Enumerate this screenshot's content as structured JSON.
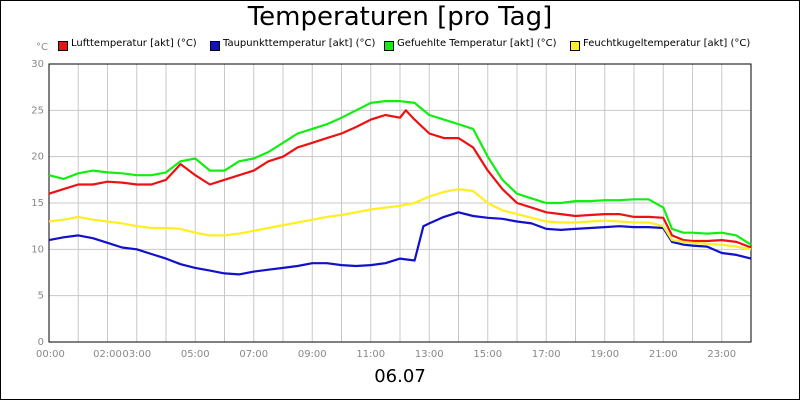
{
  "title": "Temperaturen [pro Tag]",
  "footer_date": "06.07",
  "y_unit": "°C",
  "chart_data": {
    "type": "line",
    "title": "Temperaturen [pro Tag]",
    "xlabel": "06.07",
    "ylabel": "°C",
    "ylim": [
      0,
      30
    ],
    "xlim": [
      0,
      24
    ],
    "y_ticks": [
      "0",
      "5",
      "10",
      "15",
      "20",
      "25",
      "30"
    ],
    "x_ticks": [
      {
        "h": 0,
        "label": "00:00"
      },
      {
        "h": 2,
        "label": "02:00"
      },
      {
        "h": 3,
        "label": "03:00"
      },
      {
        "h": 5,
        "label": "05:00"
      },
      {
        "h": 7,
        "label": "07:00"
      },
      {
        "h": 9,
        "label": "09:00"
      },
      {
        "h": 11,
        "label": "11:00"
      },
      {
        "h": 13,
        "label": "13:00"
      },
      {
        "h": 15,
        "label": "15:00"
      },
      {
        "h": 17,
        "label": "17:00"
      },
      {
        "h": 19,
        "label": "19:00"
      },
      {
        "h": 21,
        "label": "21:00"
      },
      {
        "h": 23,
        "label": "23:00"
      }
    ],
    "grid": true,
    "legend_position": "top",
    "series": [
      {
        "name": "Lufttemperatur [akt] (°C)",
        "color": "#ee1111",
        "points": [
          [
            0,
            16
          ],
          [
            0.5,
            16.5
          ],
          [
            1,
            17
          ],
          [
            1.5,
            17
          ],
          [
            2,
            17.3
          ],
          [
            2.5,
            17.2
          ],
          [
            3,
            17
          ],
          [
            3.5,
            17
          ],
          [
            4,
            17.5
          ],
          [
            4.5,
            19.2
          ],
          [
            5,
            18
          ],
          [
            5.5,
            17
          ],
          [
            6,
            17.5
          ],
          [
            6.5,
            18
          ],
          [
            7,
            18.5
          ],
          [
            7.5,
            19.5
          ],
          [
            8,
            20
          ],
          [
            8.5,
            21
          ],
          [
            9,
            21.5
          ],
          [
            9.5,
            22
          ],
          [
            10,
            22.5
          ],
          [
            10.5,
            23.2
          ],
          [
            11,
            24
          ],
          [
            11.5,
            24.5
          ],
          [
            12,
            24.2
          ],
          [
            12.2,
            25
          ],
          [
            12.5,
            24
          ],
          [
            13,
            22.5
          ],
          [
            13.5,
            22
          ],
          [
            14,
            22
          ],
          [
            14.5,
            21
          ],
          [
            15,
            18.5
          ],
          [
            15.5,
            16.5
          ],
          [
            16,
            15
          ],
          [
            16.5,
            14.5
          ],
          [
            17,
            14
          ],
          [
            17.5,
            13.8
          ],
          [
            18,
            13.6
          ],
          [
            18.5,
            13.7
          ],
          [
            19,
            13.8
          ],
          [
            19.5,
            13.8
          ],
          [
            20,
            13.5
          ],
          [
            20.5,
            13.5
          ],
          [
            21,
            13.4
          ],
          [
            21.3,
            11.5
          ],
          [
            21.7,
            11
          ],
          [
            22,
            10.9
          ],
          [
            22.5,
            10.9
          ],
          [
            23,
            11
          ],
          [
            23.5,
            10.8
          ],
          [
            24,
            10.2
          ]
        ]
      },
      {
        "name": "Taupunkttemperatur [akt] (°C)",
        "color": "#1111cc",
        "points": [
          [
            0,
            11
          ],
          [
            0.5,
            11.3
          ],
          [
            1,
            11.5
          ],
          [
            1.5,
            11.2
          ],
          [
            2,
            10.7
          ],
          [
            2.5,
            10.2
          ],
          [
            3,
            10
          ],
          [
            3.5,
            9.5
          ],
          [
            4,
            9
          ],
          [
            4.5,
            8.4
          ],
          [
            5,
            8
          ],
          [
            5.5,
            7.7
          ],
          [
            6,
            7.4
          ],
          [
            6.5,
            7.3
          ],
          [
            7,
            7.6
          ],
          [
            7.5,
            7.8
          ],
          [
            8,
            8
          ],
          [
            8.5,
            8.2
          ],
          [
            9,
            8.5
          ],
          [
            9.5,
            8.5
          ],
          [
            10,
            8.3
          ],
          [
            10.5,
            8.2
          ],
          [
            11,
            8.3
          ],
          [
            11.5,
            8.5
          ],
          [
            12,
            9
          ],
          [
            12.5,
            8.8
          ],
          [
            12.8,
            12.5
          ],
          [
            13,
            12.8
          ],
          [
            13.5,
            13.5
          ],
          [
            14,
            14
          ],
          [
            14.5,
            13.6
          ],
          [
            15,
            13.4
          ],
          [
            15.5,
            13.3
          ],
          [
            16,
            13
          ],
          [
            16.5,
            12.8
          ],
          [
            17,
            12.2
          ],
          [
            17.5,
            12.1
          ],
          [
            18,
            12.2
          ],
          [
            18.5,
            12.3
          ],
          [
            19,
            12.4
          ],
          [
            19.5,
            12.5
          ],
          [
            20,
            12.4
          ],
          [
            20.5,
            12.4
          ],
          [
            21,
            12.3
          ],
          [
            21.3,
            10.8
          ],
          [
            21.7,
            10.5
          ],
          [
            22,
            10.4
          ],
          [
            22.5,
            10.3
          ],
          [
            23,
            9.6
          ],
          [
            23.5,
            9.4
          ],
          [
            24,
            9
          ]
        ]
      },
      {
        "name": "Gefuehlte Temperatur [akt] (°C)",
        "color": "#11ee11",
        "points": [
          [
            0,
            18
          ],
          [
            0.5,
            17.6
          ],
          [
            1,
            18.2
          ],
          [
            1.5,
            18.5
          ],
          [
            2,
            18.3
          ],
          [
            2.5,
            18.2
          ],
          [
            3,
            18
          ],
          [
            3.5,
            18
          ],
          [
            4,
            18.3
          ],
          [
            4.5,
            19.5
          ],
          [
            5,
            19.8
          ],
          [
            5.5,
            18.5
          ],
          [
            6,
            18.5
          ],
          [
            6.5,
            19.5
          ],
          [
            7,
            19.8
          ],
          [
            7.5,
            20.5
          ],
          [
            8,
            21.5
          ],
          [
            8.5,
            22.5
          ],
          [
            9,
            23
          ],
          [
            9.5,
            23.5
          ],
          [
            10,
            24.2
          ],
          [
            10.5,
            25
          ],
          [
            11,
            25.8
          ],
          [
            11.5,
            26
          ],
          [
            12,
            26
          ],
          [
            12.5,
            25.8
          ],
          [
            13,
            24.5
          ],
          [
            13.5,
            24
          ],
          [
            14,
            23.5
          ],
          [
            14.5,
            23
          ],
          [
            15,
            20
          ],
          [
            15.5,
            17.5
          ],
          [
            16,
            16
          ],
          [
            16.5,
            15.5
          ],
          [
            17,
            15
          ],
          [
            17.5,
            15
          ],
          [
            18,
            15.2
          ],
          [
            18.5,
            15.2
          ],
          [
            19,
            15.3
          ],
          [
            19.5,
            15.3
          ],
          [
            20,
            15.4
          ],
          [
            20.5,
            15.4
          ],
          [
            21,
            14.5
          ],
          [
            21.3,
            12.2
          ],
          [
            21.7,
            11.8
          ],
          [
            22,
            11.8
          ],
          [
            22.5,
            11.7
          ],
          [
            23,
            11.8
          ],
          [
            23.5,
            11.5
          ],
          [
            24,
            10.5
          ]
        ]
      },
      {
        "name": "Feuchtkugeltemperatur [akt] (°C)",
        "color": "#ffee22",
        "points": [
          [
            0,
            13
          ],
          [
            0.5,
            13.2
          ],
          [
            1,
            13.5
          ],
          [
            1.5,
            13.2
          ],
          [
            2,
            13
          ],
          [
            2.5,
            12.8
          ],
          [
            3,
            12.5
          ],
          [
            3.5,
            12.3
          ],
          [
            4,
            12.3
          ],
          [
            4.5,
            12.2
          ],
          [
            5,
            11.8
          ],
          [
            5.5,
            11.5
          ],
          [
            6,
            11.5
          ],
          [
            6.5,
            11.7
          ],
          [
            7,
            12
          ],
          [
            7.5,
            12.3
          ],
          [
            8,
            12.6
          ],
          [
            8.5,
            12.9
          ],
          [
            9,
            13.2
          ],
          [
            9.5,
            13.5
          ],
          [
            10,
            13.7
          ],
          [
            10.5,
            14
          ],
          [
            11,
            14.3
          ],
          [
            11.5,
            14.5
          ],
          [
            12,
            14.7
          ],
          [
            12.5,
            15
          ],
          [
            13,
            15.7
          ],
          [
            13.5,
            16.2
          ],
          [
            14,
            16.5
          ],
          [
            14.5,
            16.3
          ],
          [
            15,
            15
          ],
          [
            15.5,
            14.2
          ],
          [
            16,
            13.8
          ],
          [
            16.5,
            13.4
          ],
          [
            17,
            13
          ],
          [
            17.5,
            12.9
          ],
          [
            18,
            12.9
          ],
          [
            18.5,
            13
          ],
          [
            19,
            13.1
          ],
          [
            19.5,
            13
          ],
          [
            20,
            12.9
          ],
          [
            20.5,
            12.9
          ],
          [
            21,
            12.5
          ],
          [
            21.3,
            11
          ],
          [
            21.7,
            10.8
          ],
          [
            22,
            10.7
          ],
          [
            22.5,
            10.6
          ],
          [
            23,
            10.5
          ],
          [
            23.5,
            10.3
          ],
          [
            24,
            10
          ]
        ]
      }
    ]
  }
}
